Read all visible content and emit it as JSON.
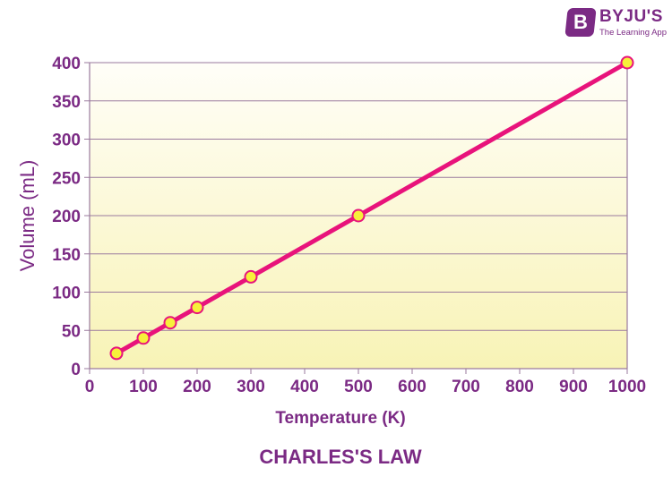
{
  "brand": {
    "name": "BYJU'S",
    "tagline": "The Learning App",
    "mark": "B"
  },
  "colors": {
    "axis_text": "#7b2a84",
    "line": "#e8137b",
    "marker_fill": "#f7f03a",
    "grid": "#9a7a9e",
    "bg_top": "#fffef8",
    "bg_bottom": "#f8f3b6"
  },
  "chart_data": {
    "type": "line",
    "title": "CHARLES'S LAW",
    "xlabel": "Temperature (K)",
    "ylabel": "Volume (mL)",
    "xlim": [
      0,
      1000
    ],
    "ylim": [
      0,
      400
    ],
    "xticks": [
      0,
      100,
      200,
      300,
      400,
      500,
      600,
      700,
      800,
      900,
      1000
    ],
    "yticks": [
      0,
      50,
      100,
      150,
      200,
      250,
      300,
      350,
      400
    ],
    "grid": "horizontal",
    "series": [
      {
        "x": [
          50,
          100,
          150,
          200,
          300,
          500,
          1000
        ],
        "y": [
          20,
          40,
          60,
          80,
          120,
          200,
          400
        ]
      }
    ]
  }
}
